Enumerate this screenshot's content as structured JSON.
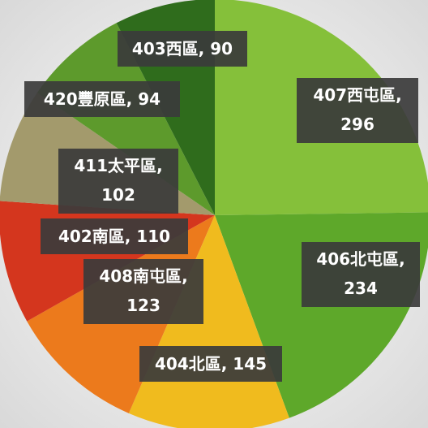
{
  "chart_data": {
    "type": "pie",
    "categories": [
      "407西屯區",
      "406北屯區",
      "404北區",
      "408南屯區",
      "402南區",
      "411太平區",
      "420豐原區",
      "403西區"
    ],
    "values": [
      296,
      234,
      145,
      123,
      110,
      102,
      94,
      90
    ],
    "colors": [
      "#85c03a",
      "#5ea82a",
      "#f0bb1e",
      "#ec7a1c",
      "#d4361e",
      "#a39a6c",
      "#5d9a2c",
      "#2f6c1c"
    ]
  }
}
